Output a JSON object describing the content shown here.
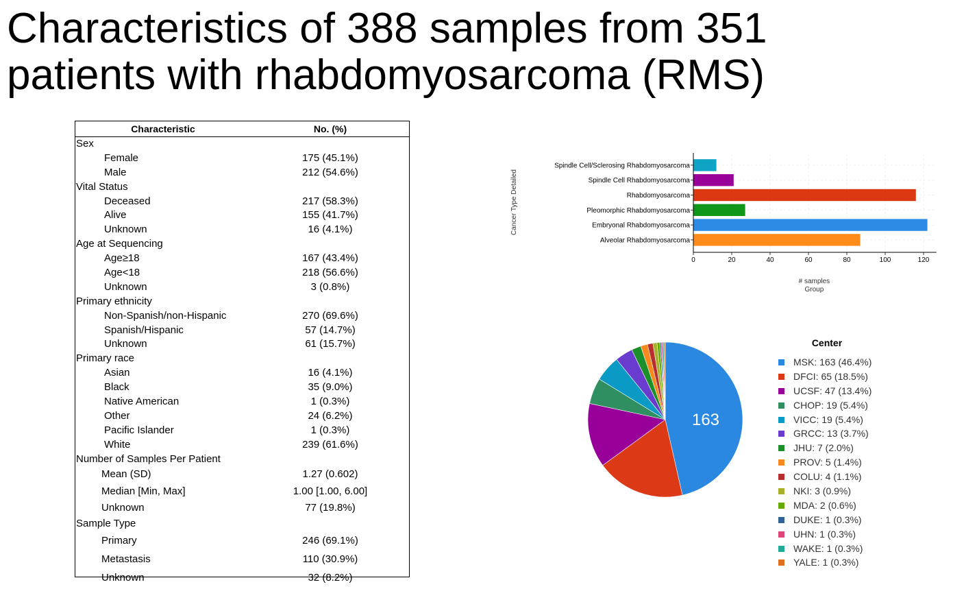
{
  "title": {
    "line1": "Characteristics of 388 samples from 351",
    "line2": "patients with rhabdomyosarcoma (RMS)"
  },
  "table": {
    "header": {
      "col1": "Characteristic",
      "col2": "No. (%)"
    },
    "rows": [
      {
        "label": "Sex",
        "value": "",
        "level": 0
      },
      {
        "label": "Female",
        "value": "175 (45.1%)",
        "level": 1
      },
      {
        "label": "Male",
        "value": "212 (54.6%)",
        "level": 1
      },
      {
        "label": "Vital Status",
        "value": "",
        "level": 0
      },
      {
        "label": "Deceased",
        "value": "217 (58.3%)",
        "level": 1
      },
      {
        "label": "Alive",
        "value": "155 (41.7%)",
        "level": 1
      },
      {
        "label": "Unknown",
        "value": "16 (4.1%)",
        "level": 1
      },
      {
        "label": "Age at Sequencing",
        "value": "",
        "level": 0
      },
      {
        "label": "Age≥18",
        "value": "167 (43.4%)",
        "level": 1
      },
      {
        "label": "Age<18",
        "value": "218 (56.6%)",
        "level": 1
      },
      {
        "label": "Unknown",
        "value": "3 (0.8%)",
        "level": 1
      },
      {
        "label": "Primary ethnicity",
        "value": "",
        "level": 0
      },
      {
        "label": "Non-Spanish/non-Hispanic",
        "value": "270 (69.6%)",
        "level": 1
      },
      {
        "label": "Spanish/Hispanic",
        "value": "57 (14.7%)",
        "level": 1
      },
      {
        "label": "Unknown",
        "value": "61 (15.7%)",
        "level": 1
      },
      {
        "label": "Primary race",
        "value": "",
        "level": 0
      },
      {
        "label": "Asian",
        "value": "16 (4.1%)",
        "level": 1
      },
      {
        "label": "Black",
        "value": "35 (9.0%)",
        "level": 1
      },
      {
        "label": "Native American",
        "value": "1 (0.3%)",
        "level": 1
      },
      {
        "label": "Other",
        "value": "24 (6.2%)",
        "level": 1
      },
      {
        "label": "Pacific Islander",
        "value": "1 (0.3%)",
        "level": 1
      },
      {
        "label": "White",
        "value": "239 (61.6%)",
        "level": 1
      },
      {
        "label": "Number of Samples Per Patient",
        "value": "",
        "level": 0
      },
      {
        "label": "Mean (SD)",
        "value": "1.27 (0.602)",
        "level": 2
      },
      {
        "label": "Median [Min, Max]",
        "value": "1.00 [1.00, 6.00]",
        "level": 2
      },
      {
        "label": "Unknown",
        "value": "77 (19.8%)",
        "level": 2
      },
      {
        "label": "Sample Type",
        "value": "",
        "level": 0
      },
      {
        "label": "Primary",
        "value": "246 (69.1%)",
        "level": 2
      },
      {
        "label": "Metastasis",
        "value": "110 (30.9%)",
        "level": 2
      },
      {
        "label": "Unknown",
        "value": "32 (8.2%)",
        "level": 2
      }
    ]
  },
  "chart_data": [
    {
      "type": "bar",
      "orientation": "horizontal",
      "ylabel": "Cancer Type Detailed",
      "xlabel": "# samples",
      "xlabel2": "Group",
      "xlim": [
        0,
        126
      ],
      "xticks": [
        0,
        20,
        40,
        60,
        80,
        100,
        120
      ],
      "grid": true,
      "categories": [
        "Spindle Cell/Sclerosing Rhabdomyosarcoma",
        "Spindle Cell Rhabdomyosarcoma",
        "Rhabdomyosarcoma",
        "Pleomorphic Rhabdomyosarcoma",
        "Embryonal Rhabdomyosarcoma",
        "Alveolar Rhabdomyosarcoma"
      ],
      "values": [
        12,
        21,
        116,
        27,
        122,
        87
      ],
      "colors": [
        "#0fa3c6",
        "#990099",
        "#dc3912",
        "#109618",
        "#2d8be6",
        "#ff8c1a"
      ]
    },
    {
      "type": "pie",
      "title": "Center",
      "center_label": "163",
      "legend_position": "right",
      "slices": [
        {
          "label": "MSK: 163 (46.4%)",
          "value": 163,
          "color": "#2b88e0"
        },
        {
          "label": "DFCI: 65 (18.5%)",
          "value": 65,
          "color": "#dc3a17"
        },
        {
          "label": "UCSF: 47 (13.4%)",
          "value": 47,
          "color": "#990099"
        },
        {
          "label": "CHOP: 19 (5.4%)",
          "value": 19,
          "color": "#2f8f60"
        },
        {
          "label": "VICC: 19 (5.4%)",
          "value": 19,
          "color": "#0b9ac5"
        },
        {
          "label": "GRCC: 13 (3.7%)",
          "value": 13,
          "color": "#6a3bcf"
        },
        {
          "label": "JHU: 7 (2.0%)",
          "value": 7,
          "color": "#1a8f2a"
        },
        {
          "label": "PROV: 5 (1.4%)",
          "value": 5,
          "color": "#f7891d"
        },
        {
          "label": "COLU: 4 (1.1%)",
          "value": 4,
          "color": "#b82e2e"
        },
        {
          "label": "NKI: 3 (0.9%)",
          "value": 3,
          "color": "#a8b02a"
        },
        {
          "label": "MDA: 2 (0.6%)",
          "value": 2,
          "color": "#66aa00"
        },
        {
          "label": "DUKE: 1 (0.3%)",
          "value": 1,
          "color": "#316395"
        },
        {
          "label": "UHN: 1 (0.3%)",
          "value": 1,
          "color": "#dd4477"
        },
        {
          "label": "WAKE: 1 (0.3%)",
          "value": 1,
          "color": "#22aa99"
        },
        {
          "label": "YALE: 1 (0.3%)",
          "value": 1,
          "color": "#e0701e"
        }
      ]
    }
  ]
}
